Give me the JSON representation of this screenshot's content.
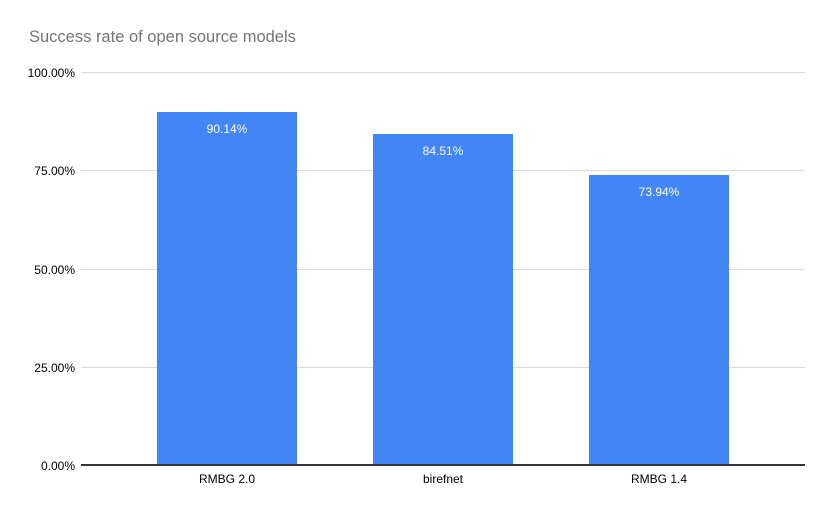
{
  "chart": {
    "title": "Success rate of open source models"
  },
  "chart_data": {
    "type": "bar",
    "title": "Success rate of open source models",
    "categories": [
      "RMBG 2.0",
      "birefnet",
      "RMBG 1.4"
    ],
    "values": [
      90.14,
      84.51,
      73.94
    ],
    "value_labels": [
      "90.14%",
      "84.51%",
      "73.94%"
    ],
    "xlabel": "",
    "ylabel": "",
    "ylim": [
      0,
      100
    ],
    "yticks": [
      0,
      25,
      50,
      75,
      100
    ],
    "ytick_labels": [
      "0.00%",
      "25.00%",
      "50.00%",
      "75.00%",
      "100.00%"
    ],
    "grid": true,
    "legend_position": "none",
    "colors": {
      "bar": "#4285f4",
      "value_label": "#ffffff",
      "title": "#757575",
      "tick_label": "#000000",
      "gridline": "#d9d9d9",
      "axis_line": "#333333",
      "background": "#ffffff"
    }
  }
}
